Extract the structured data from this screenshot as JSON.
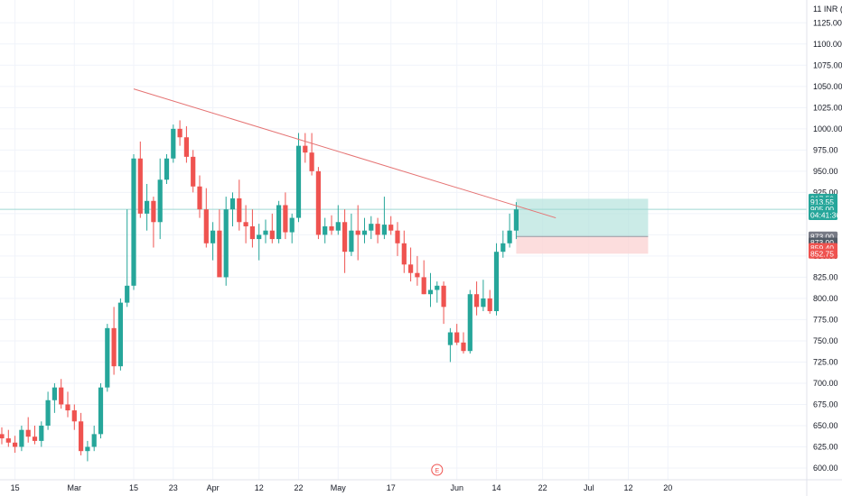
{
  "chart_data": {
    "type": "candlestick",
    "currency_label": "INR",
    "y_ticks": [
      "1125.00",
      "1100.00",
      "1075.00",
      "1050.00",
      "1025.00",
      "1000.00",
      "975.00",
      "950.00",
      "925.00",
      "900.00",
      "875.00",
      "850.00",
      "825.00",
      "800.00",
      "775.00",
      "750.00",
      "725.00",
      "700.00",
      "675.00",
      "650.00",
      "625.00",
      "600.00"
    ],
    "x_ticks": [
      {
        "label": "15",
        "index": 2
      },
      {
        "label": "Mar",
        "index": 11
      },
      {
        "label": "15",
        "index": 20
      },
      {
        "label": "23",
        "index": 26
      },
      {
        "label": "Apr",
        "index": 32
      },
      {
        "label": "12",
        "index": 39
      },
      {
        "label": "22",
        "index": 45
      },
      {
        "label": "May",
        "index": 51
      },
      {
        "label": "17",
        "index": 59
      },
      {
        "label": "Jun",
        "index": 69
      },
      {
        "label": "14",
        "index": 75
      },
      {
        "label": "22",
        "index": 82
      },
      {
        "label": "Jul",
        "index": 89
      },
      {
        "label": "12",
        "index": 95
      },
      {
        "label": "20",
        "index": 101
      }
    ],
    "y_range": [
      590,
      1145
    ],
    "candles": [
      [
        640,
        648,
        628,
        635
      ],
      [
        635,
        645,
        625,
        630
      ],
      [
        630,
        638,
        618,
        625
      ],
      [
        625,
        650,
        620,
        645
      ],
      [
        645,
        660,
        630,
        637
      ],
      [
        637,
        650,
        628,
        632
      ],
      [
        632,
        655,
        625,
        650
      ],
      [
        650,
        690,
        645,
        680
      ],
      [
        680,
        700,
        665,
        695
      ],
      [
        695,
        705,
        670,
        675
      ],
      [
        675,
        690,
        660,
        668
      ],
      [
        668,
        675,
        645,
        655
      ],
      [
        655,
        665,
        615,
        620
      ],
      [
        620,
        632,
        608,
        625
      ],
      [
        625,
        650,
        620,
        640
      ],
      [
        640,
        700,
        635,
        695
      ],
      [
        695,
        770,
        690,
        765
      ],
      [
        765,
        790,
        710,
        720
      ],
      [
        720,
        800,
        715,
        795
      ],
      [
        795,
        905,
        790,
        815
      ],
      [
        815,
        970,
        810,
        965
      ],
      [
        965,
        985,
        895,
        900
      ],
      [
        900,
        935,
        880,
        915
      ],
      [
        915,
        920,
        860,
        890
      ],
      [
        890,
        965,
        870,
        940
      ],
      [
        940,
        970,
        935,
        965
      ],
      [
        965,
        1005,
        960,
        1000
      ],
      [
        1000,
        1010,
        980,
        990
      ],
      [
        990,
        1003,
        960,
        967
      ],
      [
        967,
        975,
        925,
        932
      ],
      [
        932,
        945,
        895,
        905
      ],
      [
        905,
        930,
        860,
        865
      ],
      [
        865,
        890,
        845,
        880
      ],
      [
        880,
        905,
        830,
        825
      ],
      [
        825,
        920,
        815,
        905
      ],
      [
        905,
        925,
        885,
        918
      ],
      [
        918,
        940,
        880,
        890
      ],
      [
        890,
        910,
        865,
        885
      ],
      [
        885,
        905,
        860,
        870
      ],
      [
        870,
        888,
        845,
        875
      ],
      [
        875,
        893,
        865,
        880
      ],
      [
        880,
        900,
        865,
        870
      ],
      [
        870,
        915,
        865,
        910
      ],
      [
        910,
        925,
        870,
        878
      ],
      [
        878,
        900,
        865,
        895
      ],
      [
        895,
        995,
        890,
        980
      ],
      [
        980,
        995,
        960,
        972
      ],
      [
        972,
        995,
        945,
        950
      ],
      [
        950,
        955,
        870,
        875
      ],
      [
        875,
        895,
        865,
        885
      ],
      [
        885,
        898,
        875,
        880
      ],
      [
        880,
        910,
        875,
        890
      ],
      [
        890,
        905,
        830,
        855
      ],
      [
        855,
        900,
        850,
        880
      ],
      [
        880,
        910,
        845,
        875
      ],
      [
        875,
        895,
        865,
        880
      ],
      [
        880,
        897,
        870,
        888
      ],
      [
        888,
        895,
        865,
        875
      ],
      [
        875,
        920,
        870,
        887
      ],
      [
        887,
        897,
        875,
        880
      ],
      [
        880,
        890,
        850,
        865
      ],
      [
        865,
        880,
        830,
        840
      ],
      [
        840,
        860,
        820,
        830
      ],
      [
        830,
        850,
        815,
        825
      ],
      [
        825,
        845,
        805,
        805
      ],
      [
        805,
        830,
        790,
        810
      ],
      [
        810,
        820,
        795,
        815
      ],
      [
        815,
        820,
        770,
        790
      ],
      [
        745,
        765,
        725,
        760
      ],
      [
        760,
        770,
        745,
        748
      ],
      [
        748,
        760,
        735,
        738
      ],
      [
        738,
        810,
        735,
        805
      ],
      [
        805,
        820,
        780,
        790
      ],
      [
        790,
        822,
        785,
        800
      ],
      [
        800,
        810,
        782,
        785
      ],
      [
        785,
        865,
        780,
        855
      ],
      [
        855,
        880,
        848,
        865
      ],
      [
        865,
        900,
        860,
        880
      ],
      [
        880,
        913.55,
        870,
        905
      ]
    ],
    "trendline": {
      "x1_index": 20,
      "y1": 1047,
      "x2_index": 84,
      "y2": 895
    },
    "position": {
      "start_index": 78,
      "end_index": 98,
      "entry": 873.0,
      "target": 917.5,
      "stop": 852.75
    },
    "current_price_line": 905.0,
    "price_tags": [
      {
        "label": "917.50",
        "value": 917.5,
        "color": "#26a69a"
      },
      {
        "label": "913.55",
        "value": 913.55,
        "color": "#26a69a"
      },
      {
        "label": "905.00",
        "value": 905.0,
        "color": "#26a69a"
      },
      {
        "label": "04:41:36",
        "value": 898.3,
        "color": "#26a69a"
      },
      {
        "label": "873.00",
        "value": 873.0,
        "color": "#787b86"
      },
      {
        "label": "873.00",
        "value": 865.9,
        "color": "#525b66"
      },
      {
        "label": "859.40",
        "value": 859.4,
        "color": "#ef5350"
      },
      {
        "label": "852.75",
        "value": 852.75,
        "color": "#ef5350"
      }
    ],
    "event_marker": {
      "label": "E",
      "index": 66
    },
    "colors": {
      "up": "#26a69a",
      "down": "#ef5350",
      "trendline": "#e57373",
      "profit_zone": "#b9e4df",
      "loss_zone": "#fbd5d5",
      "price_line": "#9fd8d2"
    }
  }
}
